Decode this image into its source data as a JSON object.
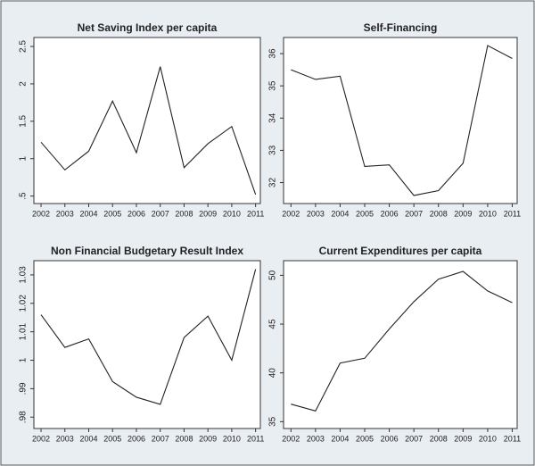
{
  "chart_data": [
    {
      "type": "line",
      "title": "Net Saving Index per capita",
      "x": [
        2002,
        2003,
        2004,
        2005,
        2006,
        2007,
        2008,
        2009,
        2010,
        2011
      ],
      "values": [
        1.22,
        0.85,
        1.1,
        1.77,
        1.08,
        2.23,
        0.88,
        1.2,
        1.43,
        0.52
      ],
      "color": "#222222",
      "xlim": [
        2001.7,
        2011.2
      ],
      "xticks": [
        2002,
        2003,
        2004,
        2005,
        2006,
        2007,
        2008,
        2009,
        2010,
        2011
      ],
      "ylim": [
        0.4,
        2.62
      ],
      "yticks": [
        {
          "value": 0.5,
          "label": ".5"
        },
        1,
        1.5,
        2,
        2.5
      ]
    },
    {
      "type": "line",
      "title": "Self-Financing",
      "x": [
        2002,
        2003,
        2004,
        2005,
        2006,
        2007,
        2008,
        2009,
        2010,
        2011
      ],
      "values": [
        35.5,
        35.2,
        35.3,
        32.5,
        32.55,
        31.6,
        31.75,
        32.6,
        36.25,
        35.85
      ],
      "color": "#222222",
      "xlim": [
        2001.7,
        2011.2
      ],
      "xticks": [
        2002,
        2003,
        2004,
        2005,
        2006,
        2007,
        2008,
        2009,
        2010,
        2011
      ],
      "ylim": [
        31.35,
        36.5
      ],
      "yticks": [
        32,
        33,
        34,
        35,
        36
      ]
    },
    {
      "type": "line",
      "title": "Non Financial Budgetary Result Index",
      "x": [
        2002,
        2003,
        2004,
        2005,
        2006,
        2007,
        2008,
        2009,
        2010,
        2011
      ],
      "values": [
        1.016,
        1.0045,
        1.0075,
        0.9925,
        0.987,
        0.9845,
        1.008,
        1.0155,
        1.0,
        1.032
      ],
      "color": "#222222",
      "xlim": [
        2001.7,
        2011.2
      ],
      "xticks": [
        2002,
        2003,
        2004,
        2005,
        2006,
        2007,
        2008,
        2009,
        2010,
        2011
      ],
      "ylim": [
        0.976,
        1.035
      ],
      "yticks": [
        {
          "value": 0.98,
          "label": ".98"
        },
        {
          "value": 0.99,
          "label": ".99"
        },
        1,
        1.01,
        1.02,
        1.03
      ]
    },
    {
      "type": "line",
      "title": "Current Expenditures per capita",
      "x": [
        2002,
        2003,
        2004,
        2005,
        2006,
        2007,
        2008,
        2009,
        2010,
        2011
      ],
      "values": [
        36.8,
        36.1,
        41.0,
        41.5,
        44.5,
        47.3,
        49.6,
        50.4,
        48.4,
        47.2
      ],
      "color": "#222222",
      "xlim": [
        2001.7,
        2011.2
      ],
      "xticks": [
        2002,
        2003,
        2004,
        2005,
        2006,
        2007,
        2008,
        2009,
        2010,
        2011
      ],
      "ylim": [
        34.3,
        51.5
      ],
      "yticks": [
        35,
        40,
        45,
        50
      ]
    }
  ]
}
